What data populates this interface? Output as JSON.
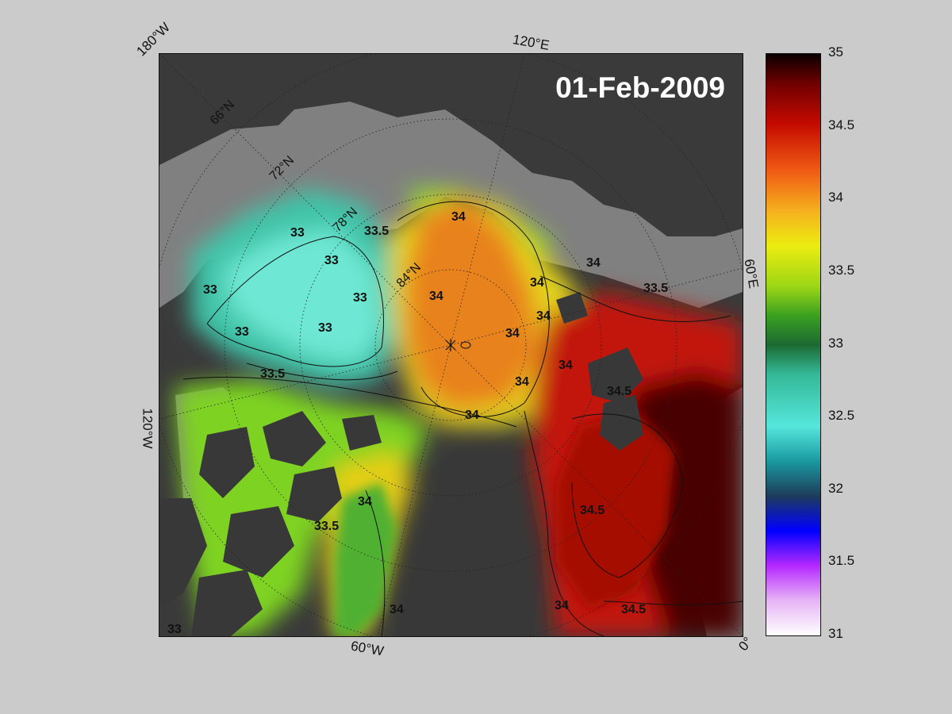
{
  "map": {
    "date": "01-Feb-2009",
    "edge_labels": {
      "lon_180W": "180°W",
      "lon_120E": "120°E",
      "lon_60E": "60°E",
      "lon_120W": "120°W",
      "lon_60W": "60°W",
      "lon_0": "0°"
    },
    "lat_labels": [
      "66°N",
      "72°N",
      "78°N",
      "84°N"
    ],
    "contour_labels": [
      "33",
      "33",
      "33",
      "33",
      "33",
      "33",
      "33.5",
      "33.5",
      "33.5",
      "33.5",
      "34",
      "34",
      "34",
      "34",
      "34",
      "34",
      "34",
      "34",
      "34",
      "34",
      "34",
      "34",
      "34.5",
      "34.5",
      "34.5",
      "33"
    ]
  },
  "colorbar": {
    "ticks": [
      "35",
      "34.5",
      "34",
      "33.5",
      "33",
      "32.5",
      "32",
      "31.5",
      "31"
    ],
    "min": 31,
    "max": 35
  },
  "colors": {
    "background": "#cbcbcb",
    "land": "#3a3a3a",
    "no_data": "#7f7f7f"
  }
}
